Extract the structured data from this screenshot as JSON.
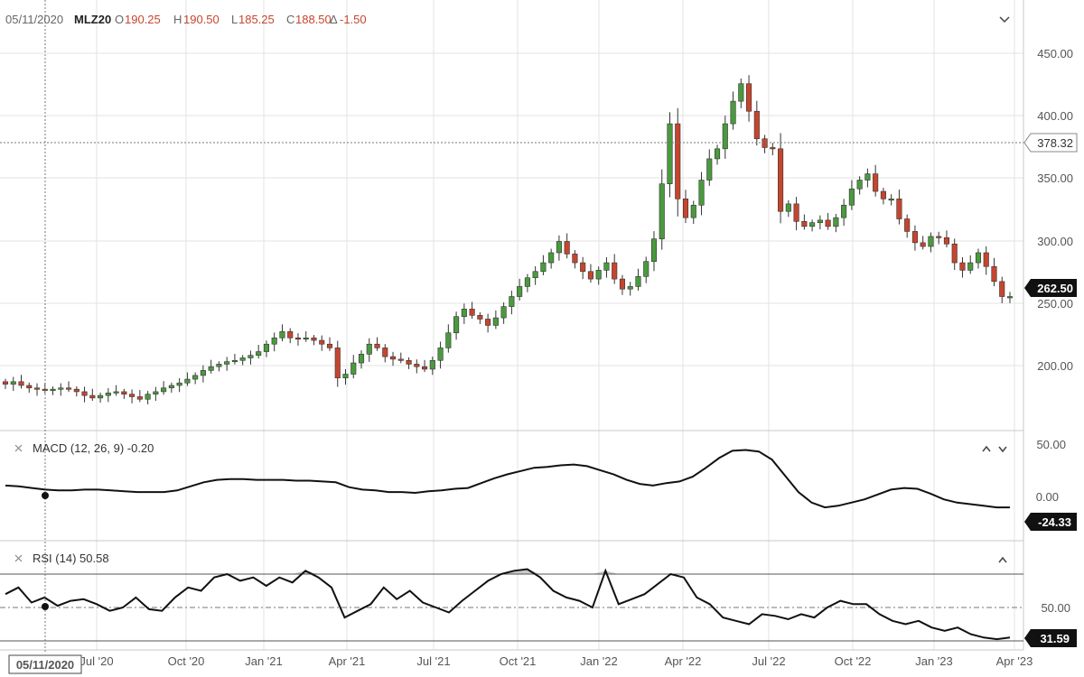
{
  "header": {
    "date": "05/11/2020",
    "symbol": "MLZ20",
    "open_key": "O",
    "open": "190.25",
    "high_key": "H",
    "high": "190.50",
    "low_key": "L",
    "low": "185.25",
    "close_key": "C",
    "close": "188.50",
    "change_key": "Δ",
    "change": "-1.50"
  },
  "price_pane": {
    "crosshair_price": "378.32",
    "last_price": "262.50",
    "y_ticks": [
      "450.00",
      "400.00",
      "350.00",
      "300.00",
      "250.00",
      "200.00"
    ]
  },
  "macd_pane": {
    "title": "MACD (12, 26, 9) -0.20",
    "last_value": "-24.33",
    "y_ticks": [
      "50.00",
      "0.00"
    ]
  },
  "rsi_pane": {
    "title": "RSI (14) 50.58",
    "last_value": "31.59",
    "y_ticks": [
      "50.00"
    ]
  },
  "x_axis": {
    "cursor_date": "05/11/2020",
    "ticks": [
      "Jul '20",
      "Oct '20",
      "Jan '21",
      "Apr '21",
      "Jul '21",
      "Oct '21",
      "Jan '22",
      "Apr '22",
      "Jul '22",
      "Oct '22",
      "Jan '23",
      "Apr '23"
    ]
  },
  "colors": {
    "up": "#4a9a3e",
    "down": "#c6452e",
    "line": "#111111",
    "rsi_fill": "#c8c8c8"
  },
  "icons": [
    "collapse-chevron-icon",
    "close-x-icon",
    "move-up-icon",
    "move-down-icon"
  ],
  "chart_data": [
    {
      "type": "candlestick",
      "symbol": "MLZ20",
      "x_start": "2020-05-11",
      "x_end": "2023-03-27",
      "ylim": [
        160,
        470
      ],
      "close_approx": [
        192,
        194,
        191,
        189,
        188,
        187,
        188,
        189,
        188,
        186,
        183,
        181,
        183,
        185,
        186,
        184,
        182,
        180,
        184,
        186,
        189,
        191,
        193,
        196,
        199,
        203,
        206,
        208,
        210,
        211,
        213,
        215,
        218,
        224,
        229,
        234,
        229,
        228,
        229,
        227,
        224,
        221,
        197,
        200,
        209,
        216,
        224,
        221,
        214,
        212,
        211,
        208,
        206,
        204,
        211,
        221,
        233,
        246,
        252,
        247,
        244,
        239,
        245,
        254,
        262,
        270,
        277,
        282,
        289,
        297,
        306,
        296,
        289,
        282,
        276,
        283,
        289,
        276,
        268,
        270,
        278,
        290,
        308,
        352,
        400,
        340,
        325,
        335,
        355,
        372,
        380,
        400,
        418,
        432,
        410,
        388,
        381,
        380,
        330,
        336,
        322,
        318,
        321,
        323,
        318,
        325,
        335,
        348,
        355,
        360,
        346,
        340,
        340,
        324,
        314,
        305,
        302,
        310,
        309,
        304,
        289,
        283,
        289,
        297,
        286,
        274,
        262,
        262
      ],
      "peak_high": 440,
      "trough_low": 172
    },
    {
      "type": "line",
      "indicator": "MACD (12, 26, 9)",
      "ylim": [
        -35,
        62
      ],
      "values": [
        3,
        2,
        0,
        -2,
        -3,
        -3,
        -2,
        -2,
        -3,
        -4,
        -5,
        -5,
        -5,
        -3,
        2,
        7,
        10,
        11,
        11,
        10,
        10,
        10,
        9,
        9,
        8,
        7,
        1,
        -2,
        -3,
        -5,
        -5,
        -6,
        -4,
        -3,
        -1,
        0,
        6,
        12,
        17,
        21,
        25,
        26,
        28,
        29,
        27,
        22,
        17,
        10,
        5,
        3,
        6,
        8,
        14,
        25,
        37,
        46,
        47,
        45,
        35,
        15,
        -5,
        -18,
        -24,
        -22,
        -18,
        -14,
        -8,
        -2,
        0,
        -1,
        -7,
        -14,
        -18,
        -20,
        -22,
        -24,
        -24
      ]
    },
    {
      "type": "line",
      "indicator": "RSI (14)",
      "overbought": 70,
      "midline": 50,
      "oversold": 30,
      "ylim": [
        28,
        78
      ],
      "values": [
        58,
        62,
        53,
        56,
        51,
        54,
        55,
        52,
        48,
        50,
        56,
        49,
        48,
        56,
        62,
        60,
        68,
        70,
        66,
        68,
        63,
        68,
        65,
        72,
        68,
        62,
        44,
        48,
        52,
        62,
        55,
        60,
        53,
        50,
        47,
        54,
        60,
        66,
        70,
        72,
        73,
        68,
        60,
        56,
        54,
        50,
        72,
        52,
        55,
        58,
        64,
        70,
        68,
        56,
        52,
        44,
        42,
        40,
        46,
        45,
        43,
        46,
        44,
        50,
        54,
        52,
        52,
        46,
        42,
        40,
        42,
        38,
        36,
        38,
        34,
        32,
        31,
        32
      ]
    }
  ]
}
